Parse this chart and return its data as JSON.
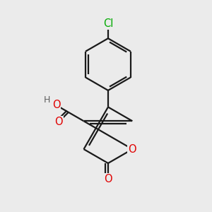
{
  "bg_color": "#ebebeb",
  "line_color": "#1a1a1a",
  "bond_width": 1.6,
  "atom_colors": {
    "O": "#e00000",
    "Cl": "#00aa00",
    "H": "#606060"
  },
  "font_size_atom": 10.5,
  "font_size_H": 9.0,
  "font_size_Cl": 10.5,
  "pcx": 5.1,
  "pcy": 3.6,
  "pr": 1.35,
  "bcx": 5.1,
  "bcy": 7.0,
  "br": 1.25,
  "xlim": [
    0,
    10
  ],
  "ylim": [
    0,
    10
  ]
}
